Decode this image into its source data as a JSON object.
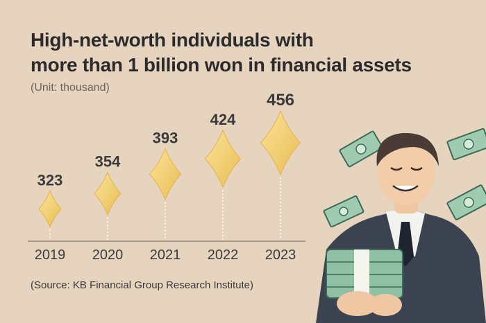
{
  "title_lines": [
    "High-net-worth individuals with",
    "more than 1 billion won in financial assets"
  ],
  "unit": "(Unit: thousand)",
  "source": "(Source: KB Financial Group Research Institute)",
  "chart_data": {
    "type": "scatter",
    "title": "High-net-worth individuals with more than 1 billion won in financial assets",
    "unit": "(Unit: thousand)",
    "categories": [
      "2019",
      "2020",
      "2021",
      "2022",
      "2023"
    ],
    "values": [
      323,
      354,
      393,
      424,
      456
    ],
    "value_labels": [
      "323",
      "354",
      "393",
      "424",
      "456"
    ],
    "marker": "gold diamond",
    "grid": false,
    "legend": "none"
  },
  "colors": {
    "background": "#e6d4bf",
    "diamond_light": "#fbe39a",
    "diamond_dark": "#e8bd52",
    "axis": "#8f8679",
    "text": "#2b2b2b"
  },
  "illustration": "happy man in suit holding stacks of money with flying banknotes"
}
